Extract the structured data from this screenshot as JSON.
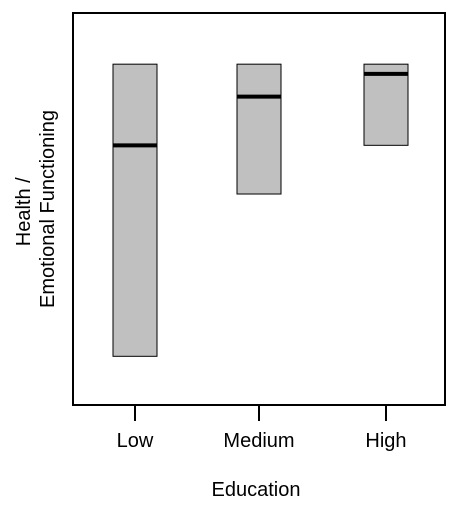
{
  "chart_data": {
    "type": "box",
    "title": "",
    "xlabel": "Education",
    "ylabel_lines": [
      "Health /",
      "Emotional Functioning"
    ],
    "categories": [
      "Low",
      "Medium",
      "High"
    ],
    "ylim": [
      0,
      100
    ],
    "yticks_shown": false,
    "grid": false,
    "legend": "none",
    "boxes": [
      {
        "category": "Low",
        "q1": 15,
        "median": 80,
        "q3": 105
      },
      {
        "category": "Medium",
        "q1": 65,
        "median": 95,
        "q3": 105
      },
      {
        "category": "High",
        "q1": 80,
        "median": 102,
        "q3": 105
      }
    ],
    "colors": {
      "box_fill": "#c0c0c0",
      "box_stroke": "#000000",
      "median": "#000000"
    }
  }
}
